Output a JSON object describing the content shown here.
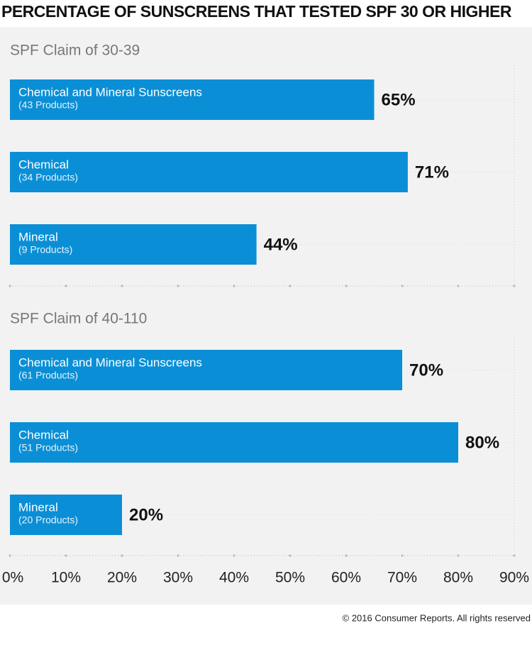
{
  "title": "PERCENTAGE OF SUNSCREENS THAT TESTED SPF 30 OR HIGHER",
  "footer": "© 2016 Consumer Reports. All rights reserved",
  "chart_data": [
    {
      "type": "bar",
      "orientation": "horizontal",
      "subtitle": "SPF Claim of  30-39",
      "categories": [
        "Chemical and Mineral Sunscreens",
        "Chemical",
        "Mineral"
      ],
      "counts": [
        "(43 Products)",
        "(34 Products)",
        "(9 Products)"
      ],
      "values": [
        65,
        71,
        44
      ],
      "value_labels": [
        "65%",
        "71%",
        "44%"
      ],
      "color": "#0a8fd6"
    },
    {
      "type": "bar",
      "orientation": "horizontal",
      "subtitle": "SPF Claim of  40-110",
      "categories": [
        "Chemical and Mineral Sunscreens",
        "Chemical",
        "Mineral"
      ],
      "counts": [
        "(61 Products)",
        "(51 Products)",
        "(20 Products)"
      ],
      "values": [
        70,
        80,
        20
      ],
      "value_labels": [
        "70%",
        "80%",
        "20%"
      ],
      "color": "#0a8fd6",
      "xlim": [
        0,
        90
      ],
      "xticks": [
        {
          "value": 0,
          "label": "0%"
        },
        {
          "value": 10,
          "label": "10%"
        },
        {
          "value": 20,
          "label": "20%"
        },
        {
          "value": 30,
          "label": "30%"
        },
        {
          "value": 40,
          "label": "40%"
        },
        {
          "value": 50,
          "label": "50%"
        },
        {
          "value": 60,
          "label": "60%"
        },
        {
          "value": 70,
          "label": "70%"
        },
        {
          "value": 80,
          "label": "80%"
        },
        {
          "value": 90,
          "label": "90%"
        }
      ]
    }
  ]
}
